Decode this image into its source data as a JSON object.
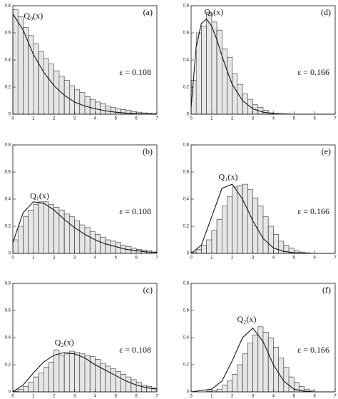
{
  "chart_data": [
    {
      "type": "histogram",
      "panel": "(a)",
      "label": "Q₀(x)",
      "annotation": "ε = 0.108",
      "bins": [
        0,
        0.25,
        0.5,
        0.75,
        1,
        1.25,
        1.5,
        1.75,
        2,
        2.25,
        2.5,
        2.75,
        3,
        3.25,
        3.5,
        3.75,
        4,
        4.25,
        4.5,
        4.75,
        5,
        5.25,
        5.5,
        5.75,
        6,
        6.25,
        6.5,
        6.75,
        7
      ],
      "values": [
        0.77,
        0.72,
        0.64,
        0.58,
        0.52,
        0.46,
        0.41,
        0.37,
        0.32,
        0.28,
        0.25,
        0.21,
        0.18,
        0.16,
        0.13,
        0.11,
        0.09,
        0.08,
        0.06,
        0.05,
        0.04,
        0.035,
        0.03,
        0.02,
        0.015,
        0.01,
        0.008,
        0.005
      ],
      "curve": {
        "x": [
          0,
          0.5,
          1,
          1.5,
          2,
          2.5,
          3,
          3.5,
          4,
          4.5,
          5,
          5.5,
          6,
          6.5,
          7
        ],
        "values": [
          0.74,
          0.62,
          0.44,
          0.31,
          0.21,
          0.14,
          0.09,
          0.06,
          0.04,
          0.025,
          0.015,
          0.008,
          0.004,
          0.002,
          0.001
        ]
      },
      "xlim": [
        0,
        7
      ],
      "ylim": [
        0,
        0.8
      ],
      "xticks": [
        0,
        1,
        2,
        3,
        4,
        5,
        6,
        7
      ],
      "yticks": [
        0,
        0.2,
        0.4,
        0.6,
        0.8
      ]
    },
    {
      "type": "histogram",
      "panel": "(d)",
      "label": "Q₀(x)",
      "annotation": "ε = 0.166",
      "bins": [
        0,
        0.25,
        0.5,
        0.75,
        1,
        1.25,
        1.5,
        1.75,
        2,
        2.25,
        2.5,
        2.75,
        3,
        3.25,
        3.5,
        3.75,
        4,
        4.25,
        4.5,
        4.75,
        5,
        5.25,
        5.5,
        5.75,
        6,
        6.25,
        6.5,
        6.75,
        7
      ],
      "values": [
        0.25,
        0.6,
        0.65,
        0.75,
        0.68,
        0.62,
        0.48,
        0.42,
        0.3,
        0.22,
        0.15,
        0.11,
        0.07,
        0.05,
        0.03,
        0.01,
        0.005,
        0,
        0,
        0,
        0,
        0,
        0,
        0,
        0,
        0,
        0,
        0
      ],
      "curve": {
        "x": [
          0,
          0.25,
          0.5,
          0.75,
          1,
          1.25,
          1.5,
          1.75,
          2,
          2.5,
          3,
          3.5,
          4,
          5,
          6,
          7
        ],
        "values": [
          0.05,
          0.5,
          0.67,
          0.7,
          0.65,
          0.55,
          0.43,
          0.32,
          0.22,
          0.1,
          0.04,
          0.015,
          0.005,
          0,
          0,
          0
        ]
      },
      "xlim": [
        0,
        7
      ],
      "ylim": [
        0,
        0.8
      ],
      "xticks": [
        0,
        1,
        2,
        3,
        4,
        5,
        6,
        7
      ],
      "yticks": [
        0,
        0.2,
        0.4,
        0.6,
        0.8
      ]
    },
    {
      "type": "histogram",
      "panel": "(b)",
      "label": "Q₁(x)",
      "annotation": "ε = 0.108",
      "bins": [
        0,
        0.25,
        0.5,
        0.75,
        1,
        1.25,
        1.5,
        1.75,
        2,
        2.25,
        2.5,
        2.75,
        3,
        3.25,
        3.5,
        3.75,
        4,
        4.25,
        4.5,
        4.75,
        5,
        5.25,
        5.5,
        5.75,
        6,
        6.25,
        6.5,
        6.75,
        7
      ],
      "values": [
        0.1,
        0.2,
        0.27,
        0.32,
        0.36,
        0.38,
        0.38,
        0.36,
        0.34,
        0.32,
        0.29,
        0.27,
        0.24,
        0.21,
        0.19,
        0.16,
        0.14,
        0.12,
        0.1,
        0.09,
        0.08,
        0.06,
        0.05,
        0.04,
        0.03,
        0.025,
        0.02,
        0.01
      ],
      "curve": {
        "x": [
          0,
          0.5,
          1,
          1.5,
          2,
          2.5,
          3,
          3.5,
          4,
          4.5,
          5,
          5.5,
          6,
          6.5,
          7
        ],
        "values": [
          0.08,
          0.3,
          0.38,
          0.37,
          0.32,
          0.25,
          0.19,
          0.14,
          0.1,
          0.07,
          0.05,
          0.03,
          0.02,
          0.01,
          0.008
        ]
      },
      "xlim": [
        0,
        7
      ],
      "ylim": [
        0,
        0.8
      ],
      "xticks": [
        0,
        1,
        2,
        3,
        4,
        5,
        6,
        7
      ],
      "yticks": [
        0,
        0.2,
        0.4,
        0.6,
        0.8
      ]
    },
    {
      "type": "histogram",
      "panel": "(e)",
      "label": "Q₁(x)",
      "annotation": "ε = 0.166",
      "bins": [
        0,
        0.25,
        0.5,
        0.75,
        1,
        1.25,
        1.5,
        1.75,
        2,
        2.25,
        2.5,
        2.75,
        3,
        3.25,
        3.5,
        3.75,
        4,
        4.25,
        4.5,
        4.75,
        5,
        5.25,
        5.5,
        5.75,
        6,
        6.25,
        6.5,
        6.75,
        7
      ],
      "values": [
        0.01,
        0.03,
        0.06,
        0.1,
        0.17,
        0.25,
        0.35,
        0.42,
        0.49,
        0.5,
        0.51,
        0.47,
        0.41,
        0.35,
        0.27,
        0.2,
        0.14,
        0.09,
        0.06,
        0.04,
        0.02,
        0.01,
        0.005,
        0,
        0,
        0,
        0,
        0
      ],
      "curve": {
        "x": [
          0,
          0.5,
          1,
          1.5,
          2,
          2.5,
          3,
          3.5,
          4,
          4.5,
          5,
          6,
          7
        ],
        "values": [
          0,
          0.06,
          0.27,
          0.48,
          0.51,
          0.4,
          0.24,
          0.11,
          0.04,
          0.015,
          0.005,
          0,
          0
        ]
      },
      "xlim": [
        0,
        7
      ],
      "ylim": [
        0,
        0.8
      ],
      "xticks": [
        0,
        1,
        2,
        3,
        4,
        5,
        6,
        7
      ],
      "yticks": [
        0,
        0.2,
        0.4,
        0.6,
        0.8
      ]
    },
    {
      "type": "histogram",
      "panel": "(c)",
      "label": "Q₂(x)",
      "annotation": "ε = 0.108",
      "bins": [
        0,
        0.25,
        0.5,
        0.75,
        1,
        1.25,
        1.5,
        1.75,
        2,
        2.25,
        2.5,
        2.75,
        3,
        3.25,
        3.5,
        3.75,
        4,
        4.25,
        4.5,
        4.75,
        5,
        5.25,
        5.5,
        5.75,
        6,
        6.25,
        6.5,
        6.75,
        7
      ],
      "values": [
        0.005,
        0.02,
        0.04,
        0.07,
        0.11,
        0.14,
        0.18,
        0.22,
        0.31,
        0.27,
        0.28,
        0.3,
        0.29,
        0.28,
        0.27,
        0.26,
        0.24,
        0.21,
        0.19,
        0.17,
        0.15,
        0.13,
        0.11,
        0.09,
        0.07,
        0.05,
        0.04,
        0.03
      ],
      "curve": {
        "x": [
          0,
          0.5,
          1,
          1.5,
          2,
          2.5,
          3,
          3.5,
          4,
          4.5,
          5,
          5.5,
          6,
          6.5,
          7
        ],
        "values": [
          0,
          0.05,
          0.14,
          0.22,
          0.27,
          0.29,
          0.28,
          0.25,
          0.2,
          0.16,
          0.12,
          0.08,
          0.05,
          0.03,
          0.02
        ]
      },
      "xlim": [
        0,
        7
      ],
      "ylim": [
        0,
        0.8
      ],
      "xticks": [
        0,
        1,
        2,
        3,
        4,
        5,
        6,
        7
      ],
      "yticks": [
        0,
        0.2,
        0.4,
        0.6,
        0.8
      ]
    },
    {
      "type": "histogram",
      "panel": "(f)",
      "label": "Q₂(x)",
      "annotation": "ε = 0.166",
      "bins": [
        0,
        0.25,
        0.5,
        0.75,
        1,
        1.25,
        1.5,
        1.75,
        2,
        2.25,
        2.5,
        2.75,
        3,
        3.25,
        3.5,
        3.75,
        4,
        4.25,
        4.5,
        4.75,
        5,
        5.25,
        5.5,
        5.75,
        6,
        6.25,
        6.5,
        6.75,
        7
      ],
      "values": [
        0,
        0,
        0,
        0.005,
        0.01,
        0.02,
        0.05,
        0.08,
        0.13,
        0.2,
        0.28,
        0.36,
        0.42,
        0.48,
        0.44,
        0.4,
        0.33,
        0.25,
        0.18,
        0.11,
        0.07,
        0.04,
        0.02,
        0.01,
        0,
        0,
        0,
        0
      ],
      "curve": {
        "x": [
          0,
          1,
          1.5,
          2,
          2.5,
          3,
          3.5,
          4,
          4.5,
          5,
          5.5,
          6,
          7
        ],
        "values": [
          0,
          0.02,
          0.08,
          0.23,
          0.4,
          0.47,
          0.37,
          0.2,
          0.08,
          0.02,
          0.005,
          0,
          0
        ]
      },
      "xlim": [
        0,
        7
      ],
      "ylim": [
        0,
        0.8
      ],
      "xticks": [
        0,
        1,
        2,
        3,
        4,
        5,
        6,
        7
      ],
      "yticks": [
        0,
        0.2,
        0.4,
        0.6,
        0.8
      ]
    }
  ]
}
